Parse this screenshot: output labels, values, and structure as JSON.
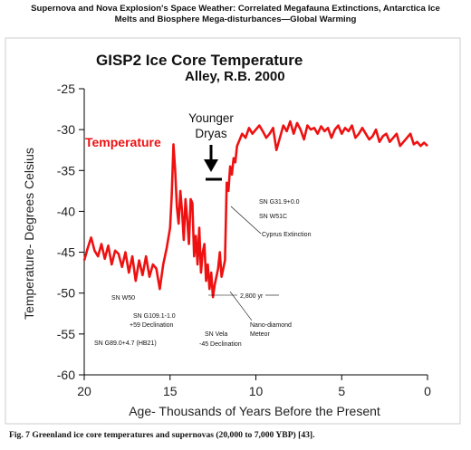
{
  "header": {
    "line1": "Supernova and Nova Explosion's Space Weather: Correlated Megafauna Extinctions, Antarctica Ice",
    "line2": "Melts and Biosphere Mega-disturbances—Global Warming"
  },
  "caption": "Fig. 7    Greenland ice core temperatures and supernovas (20,000 to 7,000 YBP) [43].",
  "colors": {
    "series": "#ee1111",
    "axis": "#000000",
    "frame": "#cccccc"
  },
  "chart_data": {
    "type": "line",
    "title": "GISP2 Ice Core Temperature",
    "subtitle": "Alley, R.B. 2000",
    "xlabel": "Age- Thousands of Years Before the Present",
    "ylabel": "Temperature- Degrees Celsius",
    "xlim": [
      20,
      0
    ],
    "ylim": [
      -60,
      -25
    ],
    "x_ticks": [
      20,
      15,
      10,
      5,
      0
    ],
    "y_ticks": [
      -25,
      -30,
      -35,
      -40,
      -45,
      -50,
      -55,
      -60
    ],
    "grid": false,
    "legend": "none",
    "series": [
      {
        "name": "Temperature",
        "x": [
          20.0,
          19.8,
          19.6,
          19.4,
          19.2,
          19.0,
          18.8,
          18.6,
          18.4,
          18.2,
          18.0,
          17.8,
          17.6,
          17.4,
          17.2,
          17.0,
          16.8,
          16.6,
          16.4,
          16.2,
          16.0,
          15.8,
          15.6,
          15.4,
          15.2,
          15.0,
          14.9,
          14.8,
          14.7,
          14.6,
          14.5,
          14.4,
          14.3,
          14.2,
          14.1,
          14.0,
          13.9,
          13.8,
          13.7,
          13.6,
          13.5,
          13.4,
          13.3,
          13.2,
          13.1,
          13.0,
          12.9,
          12.8,
          12.7,
          12.6,
          12.5,
          12.4,
          12.3,
          12.2,
          12.1,
          12.0,
          11.9,
          11.8,
          11.7,
          11.6,
          11.5,
          11.4,
          11.3,
          11.2,
          11.1,
          11.0,
          10.8,
          10.6,
          10.4,
          10.2,
          10.0,
          9.8,
          9.6,
          9.4,
          9.2,
          9.0,
          8.8,
          8.6,
          8.4,
          8.2,
          8.0,
          7.8,
          7.6,
          7.4,
          7.2,
          7.0,
          6.8,
          6.6,
          6.4,
          6.2,
          6.0,
          5.8,
          5.6,
          5.4,
          5.2,
          5.0,
          4.8,
          4.6,
          4.4,
          4.2,
          4.0,
          3.8,
          3.6,
          3.4,
          3.2,
          3.0,
          2.8,
          2.6,
          2.4,
          2.2,
          2.0,
          1.8,
          1.6,
          1.4,
          1.2,
          1.0,
          0.8,
          0.6,
          0.4,
          0.2,
          0.0
        ],
        "y": [
          -46.0,
          -44.5,
          -43.2,
          -44.8,
          -45.5,
          -44.0,
          -45.8,
          -44.2,
          -46.5,
          -44.8,
          -45.2,
          -46.8,
          -45.0,
          -47.5,
          -45.5,
          -48.5,
          -46.0,
          -47.8,
          -45.5,
          -48.0,
          -46.5,
          -47.0,
          -49.5,
          -46.5,
          -44.5,
          -42.0,
          -38.0,
          -31.8,
          -35.0,
          -39.5,
          -41.5,
          -37.5,
          -40.0,
          -43.5,
          -38.5,
          -41.0,
          -44.0,
          -38.5,
          -39.0,
          -45.5,
          -43.0,
          -46.5,
          -42.0,
          -47.5,
          -45.0,
          -44.0,
          -48.5,
          -46.5,
          -49.5,
          -47.5,
          -50.5,
          -49.0,
          -48.0,
          -47.0,
          -45.0,
          -48.0,
          -47.0,
          -46.0,
          -36.5,
          -37.5,
          -34.5,
          -35.5,
          -33.5,
          -34.0,
          -32.0,
          -31.5,
          -30.5,
          -31.0,
          -29.8,
          -30.5,
          -30.0,
          -29.5,
          -30.2,
          -31.0,
          -30.5,
          -29.8,
          -32.5,
          -31.0,
          -29.5,
          -30.2,
          -29.0,
          -30.5,
          -29.2,
          -30.0,
          -31.2,
          -29.5,
          -30.0,
          -29.8,
          -30.5,
          -29.6,
          -30.2,
          -29.8,
          -31.0,
          -30.0,
          -29.5,
          -30.5,
          -29.8,
          -30.2,
          -29.5,
          -31.0,
          -30.5,
          -29.8,
          -30.5,
          -31.2,
          -30.8,
          -30.0,
          -31.5,
          -30.8,
          -30.5,
          -31.5,
          -31.0,
          -30.5,
          -32.0,
          -31.5,
          -31.0,
          -30.5,
          -31.8,
          -31.5,
          -32.0,
          -31.6,
          -32.0
        ]
      }
    ],
    "annotations": {
      "younger_dryas": [
        "Younger",
        "Dryas"
      ],
      "sn_g31": "SN G31.9+0.0",
      "sn_w51c": "SN W51C",
      "cyprus": "Cyprus Extinction",
      "sn_w50": "SN W50",
      "sn_g109_1": "SN G109.1-1.0",
      "sn_g109_2": "+59 Declination",
      "sn_g89": "SN G89.0+4.7 (HB21)",
      "duration": "2,800 yr",
      "sn_vela_1": "SN Vela",
      "sn_vela_2": "-45 Declination",
      "nano_1": "Nano-diamond",
      "nano_2": "Meteor"
    }
  }
}
